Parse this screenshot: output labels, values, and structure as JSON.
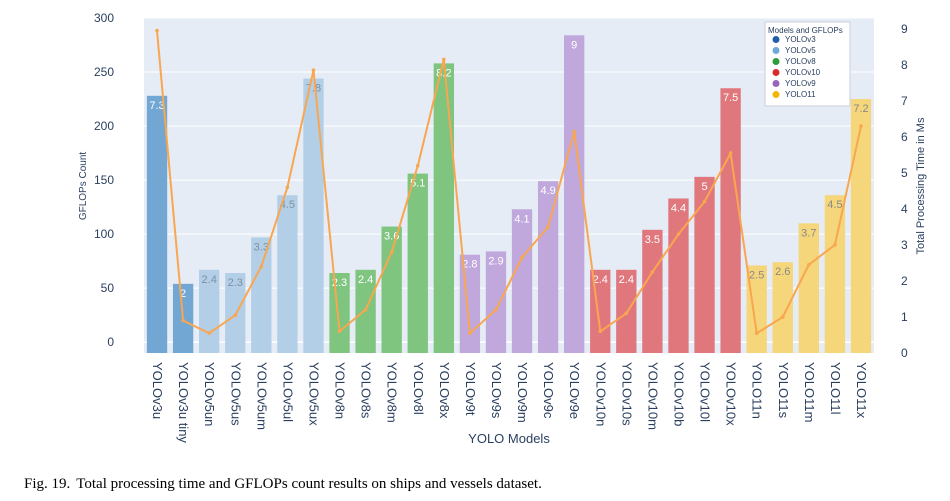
{
  "chart_data": {
    "type": "bar",
    "title": "",
    "xlabel": "YOLO Models",
    "ylabel": "GFLOPs Count",
    "y2label": "Total Processing Time in Ms",
    "ylim": [
      -10,
      300
    ],
    "y2lim": [
      0,
      9.3
    ],
    "yticks": [
      0,
      50,
      100,
      150,
      200,
      250,
      300
    ],
    "y2ticks": [
      0,
      1,
      2,
      3,
      4,
      5,
      6,
      7,
      8,
      9
    ],
    "grid": true,
    "legend": {
      "title": "Models and GFLOPs",
      "position": "top-right",
      "entries": [
        {
          "name": "YOLOv3",
          "marker_color": "#1f5fa8"
        },
        {
          "name": "YOLOv5",
          "marker_color": "#6fa8d6"
        },
        {
          "name": "YOLOv8",
          "marker_color": "#2e9e3a"
        },
        {
          "name": "YOLOv10",
          "marker_color": "#d62d2d"
        },
        {
          "name": "YOLOv9",
          "marker_color": "#9467bd"
        },
        {
          "name": "YOLO11",
          "marker_color": "#f2b705"
        }
      ]
    },
    "categories": [
      "YOLOv3u",
      "YOLOv3u tiny",
      "YOLOv5un",
      "YOLOv5us",
      "YOLOv5um",
      "YOLOv5ul",
      "YOLOv5ux",
      "YOLOv8n",
      "YOLOv8s",
      "YOLOv8m",
      "YOLOv8l",
      "YOLOv8x",
      "YOLOv9t",
      "YOLOv9s",
      "YOLOv9m",
      "YOLOv9c",
      "YOLOv9e",
      "YOLOv10n",
      "YOLOv10s",
      "YOLOv10m",
      "YOLOv10b",
      "YOLOv10l",
      "YOLOv10x",
      "YOLO11n",
      "YOLO11s",
      "YOLO11m",
      "YOLO11l",
      "YOLO11x"
    ],
    "families": [
      "YOLOv3",
      "YOLOv3",
      "YOLOv5",
      "YOLOv5",
      "YOLOv5",
      "YOLOv5",
      "YOLOv5",
      "YOLOv8",
      "YOLOv8",
      "YOLOv8",
      "YOLOv8",
      "YOLOv8",
      "YOLOv9",
      "YOLOv9",
      "YOLOv9",
      "YOLOv9",
      "YOLOv9",
      "YOLOv10",
      "YOLOv10",
      "YOLOv10",
      "YOLOv10",
      "YOLOv10",
      "YOLOv10",
      "YOLO11",
      "YOLO11",
      "YOLO11",
      "YOLO11",
      "YOLO11"
    ],
    "family_colors": {
      "YOLOv3": "#72a7d3",
      "YOLOv5": "#b3cfe8",
      "YOLOv8": "#7fc47f",
      "YOLOv9": "#c0a8dd",
      "YOLOv10": "#e0777d",
      "YOLO11": "#f5d67a"
    },
    "series": [
      {
        "name": "GFLOPs Count",
        "type": "bar",
        "values": [
          228,
          54,
          67,
          64,
          97,
          136,
          244,
          64,
          67,
          107,
          156,
          258,
          81,
          84,
          123,
          149,
          284,
          67,
          67,
          104,
          133,
          153,
          235,
          71,
          74,
          110,
          136,
          225
        ],
        "labels": [
          "7.3",
          "2",
          "2.4",
          "2.3",
          "3.3",
          "4.5",
          "7.8",
          "2.3",
          "2.4",
          "3.6",
          "5.1",
          "8.2",
          "2.8",
          "2.9",
          "4.1",
          "4.9",
          "9",
          "2.4",
          "2.4",
          "3.5",
          "4.4",
          "5",
          "7.5",
          "2.5",
          "2.6",
          "3.7",
          "4.5",
          "7.2"
        ]
      },
      {
        "name": "Total Processing Time",
        "type": "line",
        "axis": "y2",
        "color": "#f9a650",
        "values": [
          8.95,
          0.9,
          0.55,
          1.05,
          2.4,
          4.6,
          7.85,
          0.6,
          1.2,
          2.8,
          5.2,
          8.15,
          0.55,
          1.2,
          2.65,
          3.5,
          6.15,
          0.6,
          1.1,
          2.25,
          3.3,
          4.2,
          5.55,
          0.55,
          1.0,
          2.45,
          3.0,
          6.3
        ]
      }
    ]
  },
  "caption": {
    "label": "Fig. 19.",
    "text": "Total processing time and GFLOPs count results on ships and vessels dataset."
  }
}
